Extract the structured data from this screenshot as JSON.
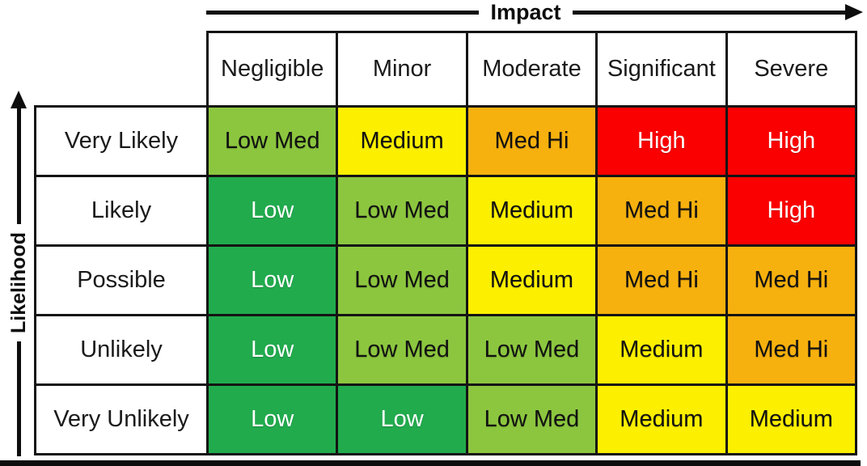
{
  "colors": {
    "low": "#21AB4D",
    "low-med": "#8CC63F",
    "medium": "#FCF000",
    "med-hi": "#F7B10E",
    "high": "#FA0000",
    "grid": "#141414",
    "cell-text-dark": "#111111",
    "cell-text-light": "#FFFFFF"
  },
  "chart_data": {
    "type": "heatmap",
    "x_axis": {
      "label": "Impact",
      "categories": [
        "Negligible",
        "Minor",
        "Moderate",
        "Significant",
        "Severe"
      ],
      "arrow_direction": "right"
    },
    "y_axis": {
      "label": "Likelihood",
      "categories": [
        "Very Likely",
        "Likely",
        "Possible",
        "Unlikely",
        "Very Unlikely"
      ],
      "arrow_direction": "up"
    },
    "legend_levels": [
      "Low",
      "Low Med",
      "Medium",
      "Med Hi",
      "High"
    ],
    "rows": [
      {
        "likelihood": "Very Likely",
        "cells": [
          {
            "label": "Low Med",
            "level": "low-med"
          },
          {
            "label": "Medium",
            "level": "medium"
          },
          {
            "label": "Med Hi",
            "level": "med-hi"
          },
          {
            "label": "High",
            "level": "high"
          },
          {
            "label": "High",
            "level": "high"
          }
        ]
      },
      {
        "likelihood": "Likely",
        "cells": [
          {
            "label": "Low",
            "level": "low"
          },
          {
            "label": "Low Med",
            "level": "low-med"
          },
          {
            "label": "Medium",
            "level": "medium"
          },
          {
            "label": "Med Hi",
            "level": "med-hi"
          },
          {
            "label": "High",
            "level": "high"
          }
        ]
      },
      {
        "likelihood": "Possible",
        "cells": [
          {
            "label": "Low",
            "level": "low"
          },
          {
            "label": "Low Med",
            "level": "low-med"
          },
          {
            "label": "Medium",
            "level": "medium"
          },
          {
            "label": "Med Hi",
            "level": "med-hi"
          },
          {
            "label": "Med Hi",
            "level": "med-hi"
          }
        ]
      },
      {
        "likelihood": "Unlikely",
        "cells": [
          {
            "label": "Low",
            "level": "low"
          },
          {
            "label": "Low Med",
            "level": "low-med"
          },
          {
            "label": "Low Med",
            "level": "low-med"
          },
          {
            "label": "Medium",
            "level": "medium"
          },
          {
            "label": "Med Hi",
            "level": "med-hi"
          }
        ]
      },
      {
        "likelihood": "Very Unlikely",
        "cells": [
          {
            "label": "Low",
            "level": "low"
          },
          {
            "label": "Low",
            "level": "low"
          },
          {
            "label": "Low Med",
            "level": "low-med"
          },
          {
            "label": "Medium",
            "level": "medium"
          },
          {
            "label": "Medium",
            "level": "medium"
          }
        ]
      }
    ]
  }
}
